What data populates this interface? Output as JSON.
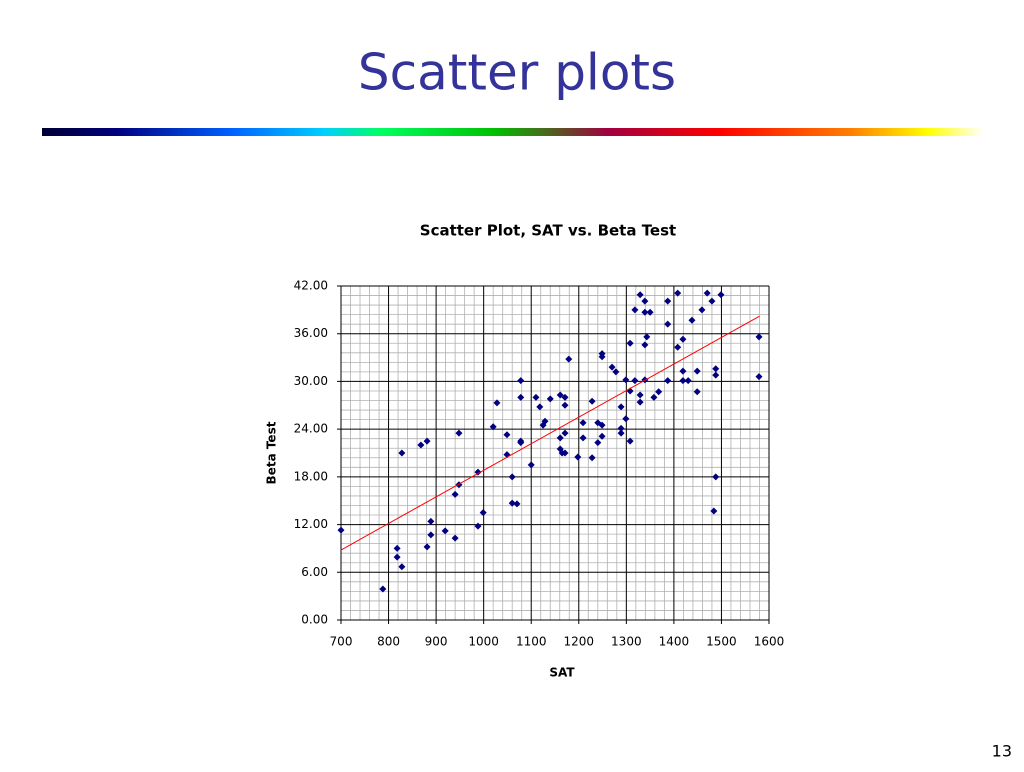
{
  "slide": {
    "title": "Scatter plots",
    "page_number": 13
  },
  "chart_data": {
    "type": "scatter",
    "title": "Scatter Plot, SAT vs. Beta Test",
    "x_label": "SAT",
    "y_label": "Beta Test",
    "xlim": [
      700,
      1600
    ],
    "xticks": [
      700,
      800,
      900,
      1000,
      1100,
      1200,
      1300,
      1400,
      1500,
      1600
    ],
    "ylim": [
      0,
      42
    ],
    "yticks": [
      {
        "value": 0,
        "label": "0.00"
      },
      {
        "value": 6,
        "label": "6.00"
      },
      {
        "value": 12,
        "label": "12.00"
      },
      {
        "value": 18,
        "label": "18.00"
      },
      {
        "value": 24,
        "label": "24.00"
      },
      {
        "value": 30,
        "label": "30.00"
      },
      {
        "value": 36,
        "label": "36.00"
      },
      {
        "value": 42,
        "label": "42.00"
      }
    ],
    "grid": true,
    "minor_grid": true,
    "color": "#000080",
    "x": [
      700,
      788,
      818,
      818,
      828,
      828,
      868,
      881,
      881,
      889,
      889,
      919,
      940,
      940,
      948,
      948,
      988,
      988,
      999,
      1020,
      1028,
      1049,
      1049,
      1060,
      1060,
      1070,
      1078,
      1078,
      1078,
      1078,
      1100,
      1110,
      1118,
      1125,
      1129,
      1140,
      1161,
      1161,
      1161,
      1165,
      1171,
      1171,
      1171,
      1171,
      1179,
      1198,
      1209,
      1209,
      1228,
      1228,
      1240,
      1240,
      1249,
      1249,
      1249,
      1249,
      1270,
      1278,
      1289,
      1289,
      1289,
      1299,
      1299,
      1308,
      1308,
      1308,
      1318,
      1318,
      1329,
      1329,
      1329,
      1339,
      1339,
      1339,
      1339,
      1343,
      1350,
      1358,
      1368,
      1387,
      1387,
      1387,
      1408,
      1408,
      1419,
      1419,
      1419,
      1430,
      1438,
      1449,
      1449,
      1459,
      1470,
      1480,
      1488,
      1488,
      1488,
      1484,
      1499,
      1579,
      1579
    ],
    "values": [
      11.3,
      3.9,
      9.0,
      7.9,
      6.7,
      21.0,
      22.0,
      22.5,
      9.2,
      10.7,
      12.4,
      11.2,
      10.3,
      15.8,
      17.0,
      23.5,
      18.6,
      11.8,
      13.5,
      24.3,
      27.3,
      20.8,
      23.3,
      18.0,
      14.7,
      14.6,
      22.5,
      22.3,
      30.1,
      28.0,
      19.5,
      28.0,
      26.8,
      24.5,
      25.0,
      27.8,
      28.3,
      22.9,
      21.5,
      21.0,
      28.0,
      27.0,
      23.5,
      21.0,
      32.8,
      20.5,
      24.8,
      22.9,
      27.5,
      20.4,
      24.8,
      22.3,
      33.5,
      33.1,
      24.5,
      23.1,
      31.8,
      31.2,
      26.8,
      24.1,
      23.5,
      30.2,
      25.3,
      28.8,
      34.8,
      22.5,
      39.0,
      30.1,
      40.9,
      28.3,
      27.4,
      40.1,
      38.7,
      34.6,
      30.2,
      35.6,
      38.7,
      28.0,
      28.7,
      40.1,
      37.2,
      30.1,
      41.1,
      34.3,
      35.3,
      31.3,
      30.1,
      30.1,
      37.7,
      31.3,
      28.7,
      39.0,
      41.1,
      40.1,
      31.6,
      30.8,
      18.0,
      13.7,
      40.9,
      35.6,
      30.6
    ],
    "trendline": {
      "x": [
        700,
        1580
      ],
      "values": [
        8.8,
        38.2
      ],
      "color": "#ff0000"
    }
  }
}
